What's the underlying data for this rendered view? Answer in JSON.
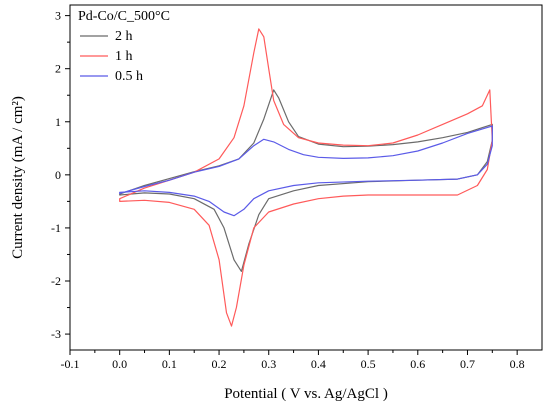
{
  "chart_data": {
    "type": "line",
    "title": "",
    "legend_title": "Pd-Co/C_500°C",
    "legend_position": "top-left",
    "xlabel": "Potential ( V vs. Ag/AgCl )",
    "ylabel": "Current density (mA / cm²)",
    "xlim": [
      -0.1,
      0.85
    ],
    "ylim": [
      -3.3,
      3.2
    ],
    "grid": false,
    "x_ticks": [
      -0.1,
      0.0,
      0.1,
      0.2,
      0.3,
      0.4,
      0.5,
      0.6,
      0.7,
      0.8
    ],
    "x_tick_labels": [
      "-0.1",
      "0.0",
      "0.1",
      "0.2",
      "0.3",
      "0.4",
      "0.5",
      "0.6",
      "0.7",
      "0.8"
    ],
    "y_ticks": [
      -3,
      -2,
      -1,
      0,
      1,
      2,
      3
    ],
    "y_tick_labels": [
      "-3",
      "-2",
      "-1",
      "0",
      "1",
      "2",
      "3"
    ],
    "series": [
      {
        "name": "2 h",
        "color": "#6b6b6b",
        "points": [
          [
            0.0,
            -0.36
          ],
          [
            0.05,
            -0.2
          ],
          [
            0.1,
            -0.07
          ],
          [
            0.15,
            0.06
          ],
          [
            0.2,
            0.17
          ],
          [
            0.24,
            0.3
          ],
          [
            0.27,
            0.6
          ],
          [
            0.29,
            1.05
          ],
          [
            0.31,
            1.6
          ],
          [
            0.32,
            1.45
          ],
          [
            0.34,
            1.0
          ],
          [
            0.36,
            0.72
          ],
          [
            0.4,
            0.58
          ],
          [
            0.45,
            0.53
          ],
          [
            0.5,
            0.54
          ],
          [
            0.55,
            0.57
          ],
          [
            0.6,
            0.62
          ],
          [
            0.65,
            0.7
          ],
          [
            0.7,
            0.8
          ],
          [
            0.75,
            0.95
          ],
          [
            0.75,
            0.65
          ],
          [
            0.74,
            0.25
          ],
          [
            0.72,
            0.0
          ],
          [
            0.68,
            -0.08
          ],
          [
            0.6,
            -0.1
          ],
          [
            0.5,
            -0.13
          ],
          [
            0.4,
            -0.2
          ],
          [
            0.35,
            -0.3
          ],
          [
            0.3,
            -0.45
          ],
          [
            0.28,
            -0.75
          ],
          [
            0.26,
            -1.3
          ],
          [
            0.245,
            -1.82
          ],
          [
            0.23,
            -1.6
          ],
          [
            0.21,
            -1.0
          ],
          [
            0.19,
            -0.65
          ],
          [
            0.15,
            -0.45
          ],
          [
            0.1,
            -0.36
          ],
          [
            0.05,
            -0.34
          ],
          [
            0.0,
            -0.38
          ]
        ]
      },
      {
        "name": "1 h",
        "color": "#ff5a5a",
        "points": [
          [
            0.0,
            -0.45
          ],
          [
            0.05,
            -0.25
          ],
          [
            0.1,
            -0.1
          ],
          [
            0.15,
            0.05
          ],
          [
            0.2,
            0.3
          ],
          [
            0.23,
            0.7
          ],
          [
            0.25,
            1.3
          ],
          [
            0.27,
            2.3
          ],
          [
            0.28,
            2.75
          ],
          [
            0.29,
            2.6
          ],
          [
            0.3,
            2.0
          ],
          [
            0.31,
            1.4
          ],
          [
            0.33,
            0.95
          ],
          [
            0.36,
            0.7
          ],
          [
            0.4,
            0.6
          ],
          [
            0.45,
            0.56
          ],
          [
            0.5,
            0.55
          ],
          [
            0.55,
            0.6
          ],
          [
            0.6,
            0.75
          ],
          [
            0.65,
            0.95
          ],
          [
            0.7,
            1.15
          ],
          [
            0.73,
            1.3
          ],
          [
            0.745,
            1.6
          ],
          [
            0.75,
            0.65
          ],
          [
            0.74,
            0.1
          ],
          [
            0.72,
            -0.2
          ],
          [
            0.68,
            -0.38
          ],
          [
            0.6,
            -0.38
          ],
          [
            0.5,
            -0.38
          ],
          [
            0.45,
            -0.4
          ],
          [
            0.4,
            -0.45
          ],
          [
            0.35,
            -0.55
          ],
          [
            0.3,
            -0.7
          ],
          [
            0.27,
            -1.0
          ],
          [
            0.25,
            -1.7
          ],
          [
            0.235,
            -2.5
          ],
          [
            0.225,
            -2.85
          ],
          [
            0.215,
            -2.6
          ],
          [
            0.2,
            -1.6
          ],
          [
            0.18,
            -0.95
          ],
          [
            0.15,
            -0.65
          ],
          [
            0.1,
            -0.52
          ],
          [
            0.05,
            -0.48
          ],
          [
            0.0,
            -0.5
          ]
        ]
      },
      {
        "name": "0.5 h",
        "color": "#5b5be8",
        "points": [
          [
            0.0,
            -0.35
          ],
          [
            0.05,
            -0.22
          ],
          [
            0.1,
            -0.1
          ],
          [
            0.15,
            0.05
          ],
          [
            0.2,
            0.16
          ],
          [
            0.24,
            0.3
          ],
          [
            0.27,
            0.55
          ],
          [
            0.29,
            0.67
          ],
          [
            0.31,
            0.62
          ],
          [
            0.34,
            0.48
          ],
          [
            0.37,
            0.38
          ],
          [
            0.4,
            0.33
          ],
          [
            0.45,
            0.31
          ],
          [
            0.5,
            0.32
          ],
          [
            0.55,
            0.36
          ],
          [
            0.6,
            0.45
          ],
          [
            0.65,
            0.6
          ],
          [
            0.7,
            0.78
          ],
          [
            0.75,
            0.92
          ],
          [
            0.75,
            0.55
          ],
          [
            0.74,
            0.2
          ],
          [
            0.72,
            0.0
          ],
          [
            0.68,
            -0.08
          ],
          [
            0.6,
            -0.1
          ],
          [
            0.5,
            -0.12
          ],
          [
            0.4,
            -0.15
          ],
          [
            0.35,
            -0.2
          ],
          [
            0.3,
            -0.3
          ],
          [
            0.27,
            -0.45
          ],
          [
            0.25,
            -0.65
          ],
          [
            0.23,
            -0.77
          ],
          [
            0.21,
            -0.7
          ],
          [
            0.18,
            -0.5
          ],
          [
            0.15,
            -0.4
          ],
          [
            0.1,
            -0.33
          ],
          [
            0.05,
            -0.3
          ],
          [
            0.0,
            -0.33
          ]
        ]
      }
    ]
  }
}
